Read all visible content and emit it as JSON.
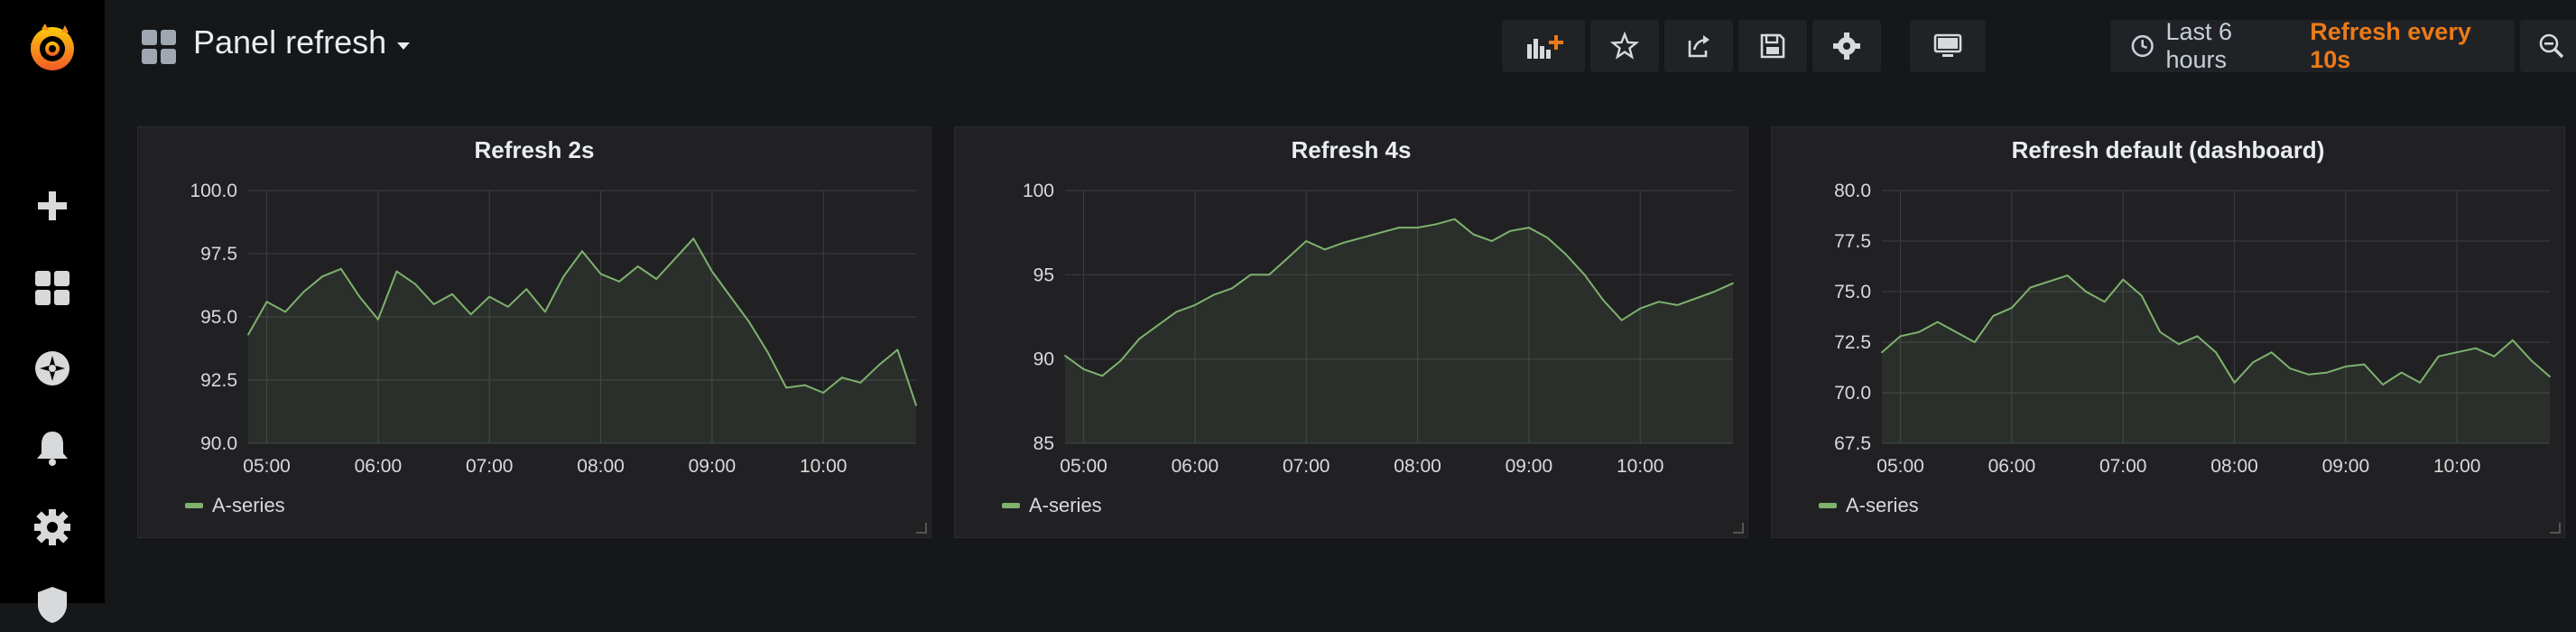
{
  "sidebar": {
    "items": [
      {
        "icon": "plus-icon"
      },
      {
        "icon": "dashboards-icon"
      },
      {
        "icon": "explore-icon"
      },
      {
        "icon": "bell-icon"
      },
      {
        "icon": "gear-icon"
      },
      {
        "icon": "shield-icon"
      }
    ]
  },
  "header": {
    "title": "Panel refresh",
    "buttons": [
      "add-panel-icon",
      "star-icon",
      "share-icon",
      "save-icon",
      "settings-icon",
      "tv-icon"
    ],
    "time_range": "Last 6 hours",
    "refresh": "Refresh every 10s"
  },
  "colors": {
    "series": "#7eb26d",
    "accent": "#eb7b18",
    "panel_bg": "#212124",
    "page_bg": "#161719"
  },
  "panels": [
    {
      "title": "Refresh 2s",
      "legend": "A-series"
    },
    {
      "title": "Refresh 4s",
      "legend": "A-series"
    },
    {
      "title": "Refresh default (dashboard)",
      "legend": "A-series"
    }
  ],
  "chart_data": [
    {
      "type": "line",
      "title": "Refresh 2s",
      "x": [
        "04:50",
        "05:00",
        "05:10",
        "05:20",
        "05:30",
        "05:40",
        "05:50",
        "06:00",
        "06:10",
        "06:20",
        "06:30",
        "06:40",
        "06:50",
        "07:00",
        "07:10",
        "07:20",
        "07:30",
        "07:40",
        "07:50",
        "08:00",
        "08:10",
        "08:20",
        "08:30",
        "08:40",
        "08:50",
        "09:00",
        "09:10",
        "09:20",
        "09:30",
        "09:40",
        "09:50",
        "10:00",
        "10:10",
        "10:20",
        "10:30",
        "10:40",
        "10:50"
      ],
      "x_ticks": [
        "05:00",
        "06:00",
        "07:00",
        "08:00",
        "09:00",
        "10:00"
      ],
      "y_ticks": [
        "90.0",
        "92.5",
        "95.0",
        "97.5",
        "100.0"
      ],
      "ylim": [
        90,
        100
      ],
      "series": [
        {
          "name": "A-series",
          "values": [
            94.3,
            95.6,
            95.2,
            96.0,
            96.6,
            96.9,
            95.8,
            94.9,
            96.8,
            96.3,
            95.5,
            95.9,
            95.1,
            95.8,
            95.4,
            96.1,
            95.2,
            96.6,
            97.6,
            96.7,
            96.4,
            97.0,
            96.5,
            97.3,
            98.1,
            96.8,
            95.8,
            94.8,
            93.6,
            92.2,
            92.3,
            92.0,
            92.6,
            92.4,
            93.1,
            93.7,
            91.5
          ]
        }
      ]
    },
    {
      "type": "line",
      "title": "Refresh 4s",
      "x": [
        "04:50",
        "05:00",
        "05:10",
        "05:20",
        "05:30",
        "05:40",
        "05:50",
        "06:00",
        "06:10",
        "06:20",
        "06:30",
        "06:40",
        "06:50",
        "07:00",
        "07:10",
        "07:20",
        "07:30",
        "07:40",
        "07:50",
        "08:00",
        "08:10",
        "08:20",
        "08:30",
        "08:40",
        "08:50",
        "09:00",
        "09:10",
        "09:20",
        "09:30",
        "09:40",
        "09:50",
        "10:00",
        "10:10",
        "10:20",
        "10:30",
        "10:40",
        "10:50"
      ],
      "x_ticks": [
        "05:00",
        "06:00",
        "07:00",
        "08:00",
        "09:00",
        "10:00"
      ],
      "y_ticks": [
        "85",
        "90",
        "95",
        "100"
      ],
      "ylim": [
        85,
        100
      ],
      "series": [
        {
          "name": "A-series",
          "values": [
            90.2,
            89.4,
            89.0,
            89.9,
            91.2,
            92.0,
            92.8,
            93.2,
            93.8,
            94.2,
            95.0,
            95.0,
            96.0,
            97.0,
            96.5,
            96.9,
            97.2,
            97.5,
            97.8,
            97.8,
            98.0,
            98.3,
            97.4,
            97.0,
            97.6,
            97.8,
            97.2,
            96.2,
            95.0,
            93.5,
            92.3,
            93.0,
            93.4,
            93.2,
            93.6,
            94.0,
            94.5
          ]
        }
      ]
    },
    {
      "type": "line",
      "title": "Refresh default (dashboard)",
      "x": [
        "04:50",
        "05:00",
        "05:10",
        "05:20",
        "05:30",
        "05:40",
        "05:50",
        "06:00",
        "06:10",
        "06:20",
        "06:30",
        "06:40",
        "06:50",
        "07:00",
        "07:10",
        "07:20",
        "07:30",
        "07:40",
        "07:50",
        "08:00",
        "08:10",
        "08:20",
        "08:30",
        "08:40",
        "08:50",
        "09:00",
        "09:10",
        "09:20",
        "09:30",
        "09:40",
        "09:50",
        "10:00",
        "10:10",
        "10:20",
        "10:30",
        "10:40",
        "10:50"
      ],
      "x_ticks": [
        "05:00",
        "06:00",
        "07:00",
        "08:00",
        "09:00",
        "10:00"
      ],
      "y_ticks": [
        "67.5",
        "70.0",
        "72.5",
        "75.0",
        "77.5",
        "80.0"
      ],
      "ylim": [
        67.5,
        80
      ],
      "series": [
        {
          "name": "A-series",
          "values": [
            72.0,
            72.8,
            73.0,
            73.5,
            73.0,
            72.5,
            73.8,
            74.2,
            75.2,
            75.5,
            75.8,
            75.0,
            74.5,
            75.6,
            74.8,
            73.0,
            72.4,
            72.8,
            72.0,
            70.5,
            71.5,
            72.0,
            71.2,
            70.9,
            71.0,
            71.3,
            71.4,
            70.4,
            71.0,
            70.5,
            71.8,
            72.0,
            72.2,
            71.8,
            72.6,
            71.6,
            70.8
          ]
        }
      ]
    }
  ]
}
